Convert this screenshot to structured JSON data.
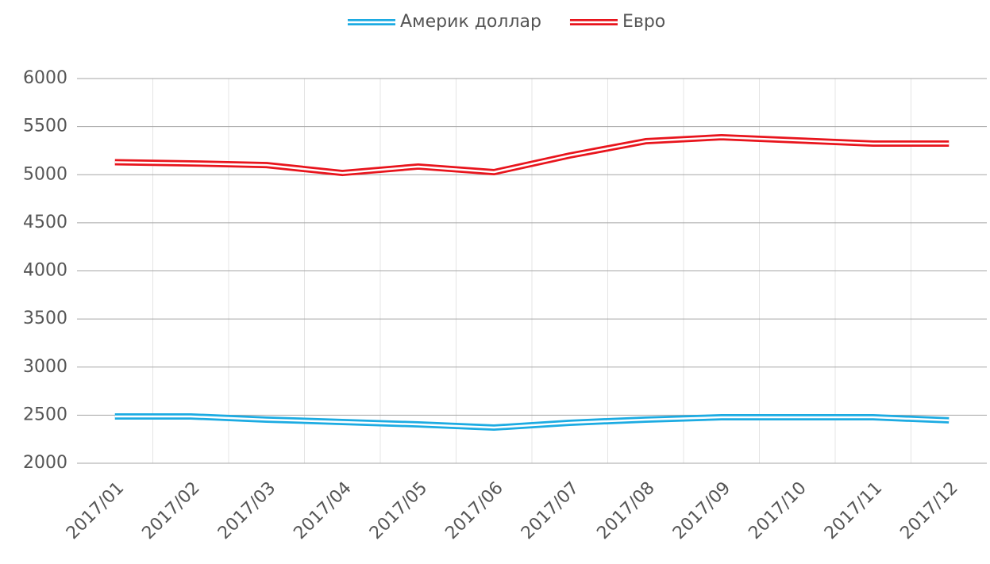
{
  "chart_data": {
    "type": "line",
    "categories": [
      "2017/01",
      "2017/02",
      "2017/03",
      "2017/04",
      "2017/05",
      "2017/06",
      "2017/07",
      "2017/08",
      "2017/09",
      "2017/10",
      "2017/11",
      "2017/12"
    ],
    "series": [
      {
        "name": "Америк доллар",
        "color": "#1cabe2",
        "values": [
          2487,
          2487,
          2454,
          2429,
          2404,
          2371,
          2421,
          2454,
          2478,
          2478,
          2478,
          2446
        ]
      },
      {
        "name": "Евро",
        "color": "#e8141c",
        "values": [
          5130,
          5118,
          5100,
          5018,
          5085,
          5027,
          5200,
          5348,
          5390,
          5357,
          5324,
          5324
        ]
      }
    ],
    "ylim": [
      2000,
      6000
    ],
    "yticks": [
      2000,
      2500,
      3000,
      3500,
      4000,
      4500,
      5000,
      5500,
      6000
    ],
    "grid": true,
    "legend": "top"
  }
}
